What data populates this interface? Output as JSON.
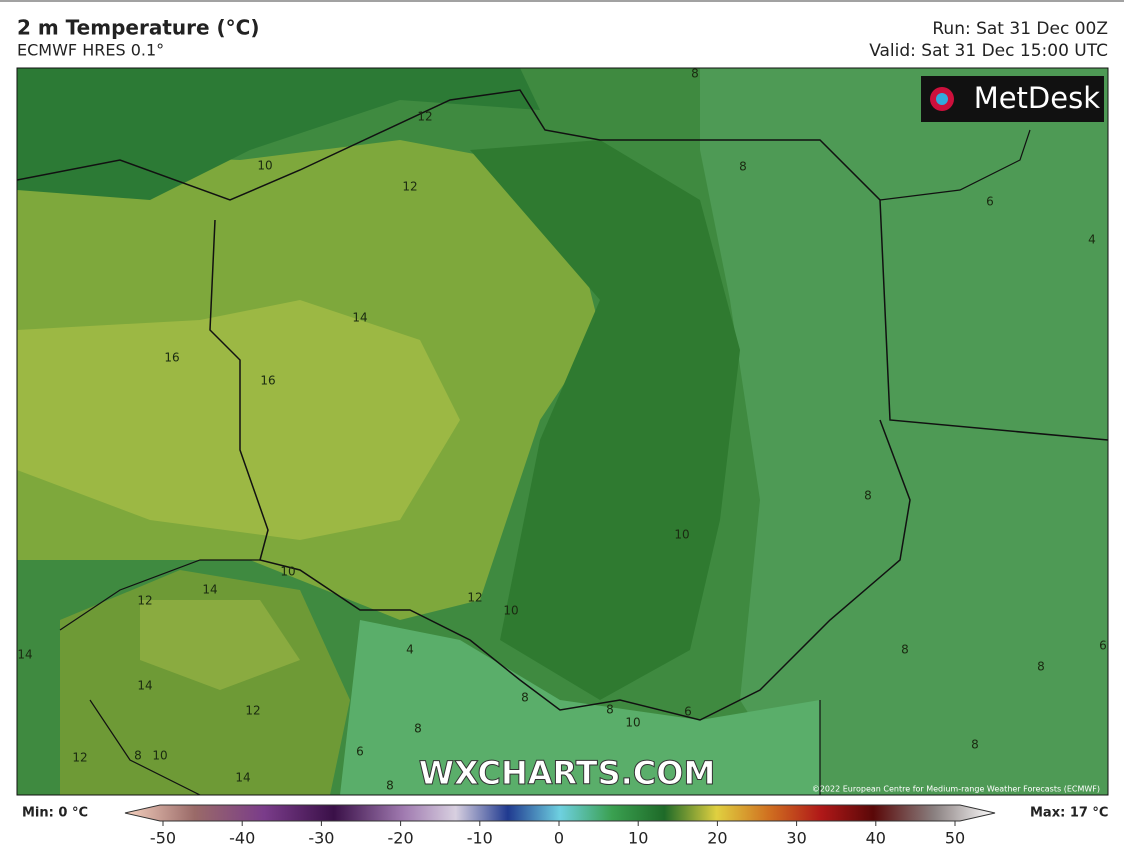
{
  "header": {
    "title": "2 m Temperature (°C)",
    "subtitle": "ECMWF HRES 0.1°",
    "run": "Run: Sat 31 Dec 00Z",
    "valid": "Valid: Sat 31 Dec 15:00 UTC"
  },
  "map": {
    "logo": "MetDesk",
    "watermark": "WXCHARTS.COM",
    "copyright": "©2022 European Centre for Medium-range Weather Forecasts (ECMWF)",
    "contour_labels": [
      12,
      10,
      12,
      8,
      8,
      6,
      4,
      14,
      16,
      16,
      8,
      10,
      10,
      14,
      12,
      12,
      10,
      4,
      14,
      14,
      8,
      12,
      8,
      10,
      6,
      8,
      8,
      8,
      6,
      6,
      12,
      8,
      10,
      14,
      8,
      8
    ]
  },
  "legend": {
    "min": "Min: 0 °C",
    "max": "Max: 17 °C",
    "ticks": [
      -50,
      -40,
      -30,
      -20,
      -10,
      0,
      10,
      20,
      30,
      40,
      50
    ]
  }
}
